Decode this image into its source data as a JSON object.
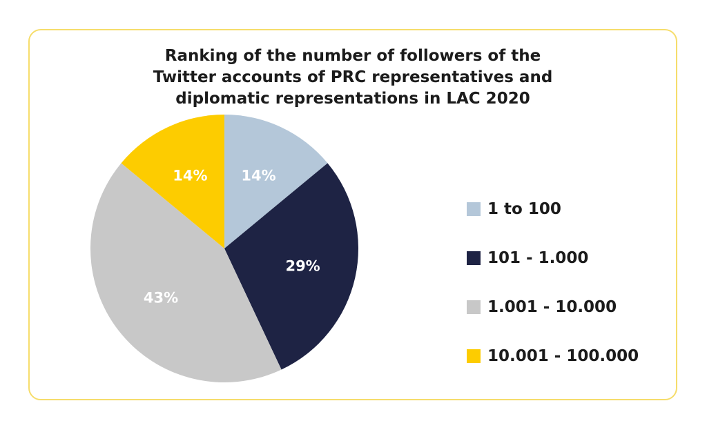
{
  "chart_data": {
    "type": "pie",
    "title_lines": [
      "Ranking of the number of followers of the",
      "Twitter accounts of PRC representatives and",
      "diplomatic representations in LAC 2020"
    ],
    "categories": [
      "1 to 100",
      "101 - 1.000",
      "1.001 - 10.000",
      "10.001 - 100.000"
    ],
    "values": [
      14,
      29,
      43,
      14
    ],
    "labels": [
      "14%",
      "29%",
      "43%",
      "14%"
    ],
    "colors": [
      "#b4c7d9",
      "#1e2344",
      "#c8c8c8",
      "#fdcc00"
    ],
    "label_colors": [
      "#ffffff",
      "#ffffff",
      "#ffffff",
      "#ffffff"
    ],
    "start_angle_deg": 0,
    "direction": "clockwise",
    "legend_position": "right"
  },
  "card": {
    "border_color": "#f6dd6b"
  }
}
